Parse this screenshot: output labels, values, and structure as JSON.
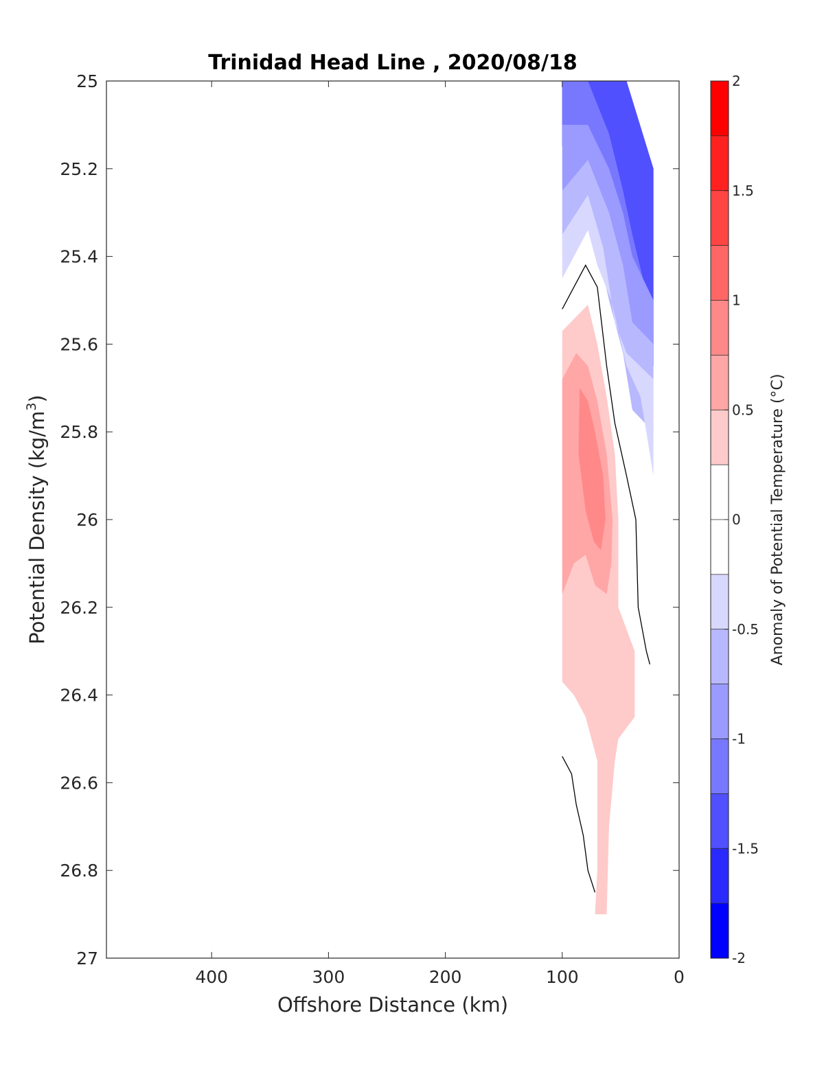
{
  "chart_data": {
    "type": "contour",
    "title": "Trinidad Head Line , 2020/08/18",
    "xlabel": "Offshore Distance (km)",
    "ylabel": "Potential Density (kg/m",
    "ylabel_superscript": "3",
    "ylabel_close": ")",
    "xlim": [
      490,
      0
    ],
    "x_reversed": true,
    "ylim": [
      25,
      27
    ],
    "y_reversed": true,
    "x_ticks": [
      400,
      300,
      200,
      100,
      0
    ],
    "y_ticks": [
      25,
      25.2,
      25.4,
      25.6,
      25.8,
      26,
      26.2,
      26.4,
      26.6,
      26.8,
      27
    ],
    "grid": false,
    "colorbar": {
      "label": "Anomaly of Potential Temperature (°C)",
      "range": [
        -2,
        2
      ],
      "step": 0.25,
      "ticks": [
        2,
        1.5,
        1,
        0.5,
        0,
        -0.5,
        -1,
        -1.5,
        -2
      ],
      "colors_high_to_low": [
        "#ff0000",
        "#ff2020",
        "#ff4444",
        "#ff6666",
        "#ff8888",
        "#ffa6a6",
        "#ffcaca",
        "#ffffff",
        "#ffffff",
        "#d8d8ff",
        "#b8b8ff",
        "#9a9aff",
        "#7878ff",
        "#5050ff",
        "#2a2aff",
        "#0000ff"
      ]
    },
    "filled_regions": [
      {
        "anomaly_level": -1.5,
        "color": "#2a2aff",
        "points": [
          [
            100,
            25
          ],
          [
            45,
            25
          ],
          [
            22,
            25.2
          ],
          [
            22,
            25.65
          ],
          [
            40,
            25.65
          ],
          [
            48,
            25.55
          ],
          [
            60,
            25.4
          ],
          [
            70,
            25.25
          ],
          [
            78,
            25.15
          ],
          [
            100,
            25.15
          ]
        ]
      },
      {
        "anomaly_level": -1.25,
        "color": "#5050ff",
        "points": [
          [
            100,
            25
          ],
          [
            45,
            25
          ],
          [
            22,
            25.2
          ],
          [
            22,
            25.65
          ],
          [
            40,
            25.65
          ],
          [
            48,
            25.55
          ],
          [
            60,
            25.4
          ],
          [
            70,
            25.25
          ],
          [
            78,
            25.15
          ],
          [
            100,
            25.15
          ]
        ]
      },
      {
        "anomaly_level": -1.0,
        "color": "#7878ff",
        "points": [
          [
            100,
            25
          ],
          [
            78,
            25
          ],
          [
            60,
            25.12
          ],
          [
            48,
            25.25
          ],
          [
            40,
            25.35
          ],
          [
            22,
            25.55
          ],
          [
            22,
            25.65
          ],
          [
            40,
            25.65
          ],
          [
            48,
            25.55
          ],
          [
            60,
            25.4
          ],
          [
            70,
            25.25
          ],
          [
            78,
            25.15
          ],
          [
            100,
            25.15
          ]
        ]
      },
      {
        "anomaly_level": -0.75,
        "color": "#9a9aff",
        "points": [
          [
            100,
            25.1
          ],
          [
            78,
            25.1
          ],
          [
            60,
            25.2
          ],
          [
            48,
            25.3
          ],
          [
            40,
            25.4
          ],
          [
            22,
            25.5
          ],
          [
            22,
            25.65
          ],
          [
            40,
            25.65
          ],
          [
            48,
            25.55
          ],
          [
            60,
            25.4
          ],
          [
            70,
            25.25
          ],
          [
            78,
            25.2
          ],
          [
            100,
            25.25
          ]
        ]
      },
      {
        "anomaly_level": -0.5,
        "color": "#b8b8ff",
        "points": [
          [
            100,
            25.25
          ],
          [
            78,
            25.18
          ],
          [
            60,
            25.3
          ],
          [
            48,
            25.42
          ],
          [
            40,
            25.55
          ],
          [
            22,
            25.6
          ],
          [
            22,
            25.8
          ],
          [
            40,
            25.75
          ],
          [
            48,
            25.62
          ],
          [
            60,
            25.5
          ],
          [
            70,
            25.38
          ],
          [
            78,
            25.3
          ],
          [
            100,
            25.4
          ]
        ]
      },
      {
        "anomaly_level": -0.25,
        "color": "#d8d8ff",
        "points": [
          [
            100,
            25.35
          ],
          [
            78,
            25.26
          ],
          [
            65,
            25.38
          ],
          [
            55,
            25.55
          ],
          [
            45,
            25.62
          ],
          [
            22,
            25.68
          ],
          [
            22,
            25.9
          ],
          [
            33,
            25.72
          ],
          [
            45,
            25.65
          ],
          [
            58,
            25.5
          ],
          [
            70,
            25.42
          ],
          [
            78,
            25.34
          ],
          [
            100,
            25.45
          ]
        ]
      },
      {
        "anomaly_level": 0.25,
        "color": "#ffcaca",
        "points": [
          [
            100,
            25.57
          ],
          [
            78,
            25.51
          ],
          [
            70,
            25.6
          ],
          [
            62,
            25.72
          ],
          [
            55,
            25.85
          ],
          [
            52,
            26
          ],
          [
            52,
            26.2
          ],
          [
            38,
            26.3
          ],
          [
            38,
            26.45
          ],
          [
            52,
            26.5
          ],
          [
            55,
            26.55
          ],
          [
            60,
            26.7
          ],
          [
            62,
            26.9
          ],
          [
            72,
            26.9
          ],
          [
            70,
            26.8
          ],
          [
            70,
            26.55
          ],
          [
            80,
            26.45
          ],
          [
            90,
            26.4
          ],
          [
            100,
            26.37
          ]
        ]
      },
      {
        "anomaly_level": 0.5,
        "color": "#ffa6a6",
        "points": [
          [
            100,
            25.68
          ],
          [
            88,
            25.62
          ],
          [
            78,
            25.65
          ],
          [
            70,
            25.73
          ],
          [
            62,
            25.85
          ],
          [
            57,
            26
          ],
          [
            58,
            26.1
          ],
          [
            62,
            26.17
          ],
          [
            72,
            26.15
          ],
          [
            80,
            26.08
          ],
          [
            90,
            26.1
          ],
          [
            100,
            26.17
          ]
        ]
      },
      {
        "anomaly_level": 0.75,
        "color": "#ff8888",
        "points": [
          [
            85,
            25.7
          ],
          [
            78,
            25.73
          ],
          [
            72,
            25.8
          ],
          [
            65,
            25.9
          ],
          [
            63,
            26
          ],
          [
            67,
            26.07
          ],
          [
            73,
            26.05
          ],
          [
            80,
            25.98
          ],
          [
            86,
            25.85
          ]
        ]
      }
    ],
    "contour_lines": [
      {
        "anomaly_level": 0,
        "points": [
          [
            100,
            25.52
          ],
          [
            92,
            25.48
          ],
          [
            80,
            25.42
          ],
          [
            70,
            25.47
          ],
          [
            62,
            25.65
          ],
          [
            55,
            25.78
          ],
          [
            45,
            25.9
          ],
          [
            37,
            26
          ],
          [
            35,
            26.2
          ],
          [
            28,
            26.3
          ],
          [
            25,
            26.33
          ]
        ]
      },
      {
        "anomaly_level": 0,
        "points": [
          [
            100,
            26.54
          ],
          [
            92,
            26.58
          ],
          [
            88,
            26.65
          ],
          [
            82,
            26.72
          ],
          [
            78,
            26.8
          ],
          [
            72,
            26.85
          ]
        ]
      }
    ]
  }
}
